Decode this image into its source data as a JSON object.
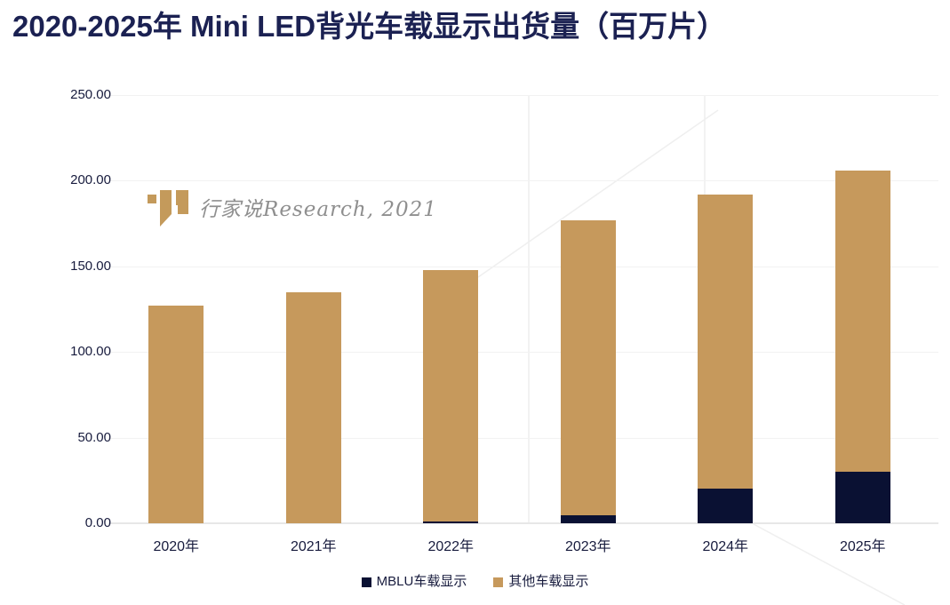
{
  "title": "2020-2025年 Mini LED背光车载显示出货量（百万片）",
  "watermark": {
    "logo": "xingjiashuo-logo",
    "text": "行家说Research, 2021"
  },
  "legend": [
    {
      "label": "MBLU车载显示",
      "color": "#0a1133"
    },
    {
      "label": "其他车载显示",
      "color": "#c6995c"
    }
  ],
  "chart_data": {
    "type": "bar",
    "stacked": true,
    "title": "2020-2025年 Mini LED背光车载显示出货量（百万片）",
    "unit": "百万片",
    "categories": [
      "2020年",
      "2021年",
      "2022年",
      "2023年",
      "2024年",
      "2025年"
    ],
    "series": [
      {
        "name": "MBLU车载显示",
        "color": "#0a1133",
        "values": [
          0,
          0,
          1,
          4.5,
          20,
          30
        ]
      },
      {
        "name": "其他车载显示",
        "color": "#c6995c",
        "values": [
          127,
          135,
          147,
          172.5,
          172,
          176
        ]
      }
    ],
    "totals": [
      127,
      135,
      148,
      177,
      192,
      206
    ],
    "y_ticks": [
      0,
      50,
      100,
      150,
      200,
      250
    ],
    "y_tick_labels": [
      "0.00",
      "50.00",
      "100.00",
      "150.00",
      "200.00",
      "250.00"
    ],
    "ylim": [
      0,
      250
    ],
    "xlabel": "",
    "ylabel": "",
    "grid": "horizontal",
    "legend_position": "bottom"
  },
  "colors": {
    "title": "#1b2152",
    "axis_text": "#171b3d",
    "gridline": "#f2f2f2",
    "axis_line": "#e7e7e7",
    "mblu": "#0a1133",
    "other": "#c6995c",
    "watermark_gold": "#c49a5b",
    "watermark_text": "#8f8f8f"
  }
}
